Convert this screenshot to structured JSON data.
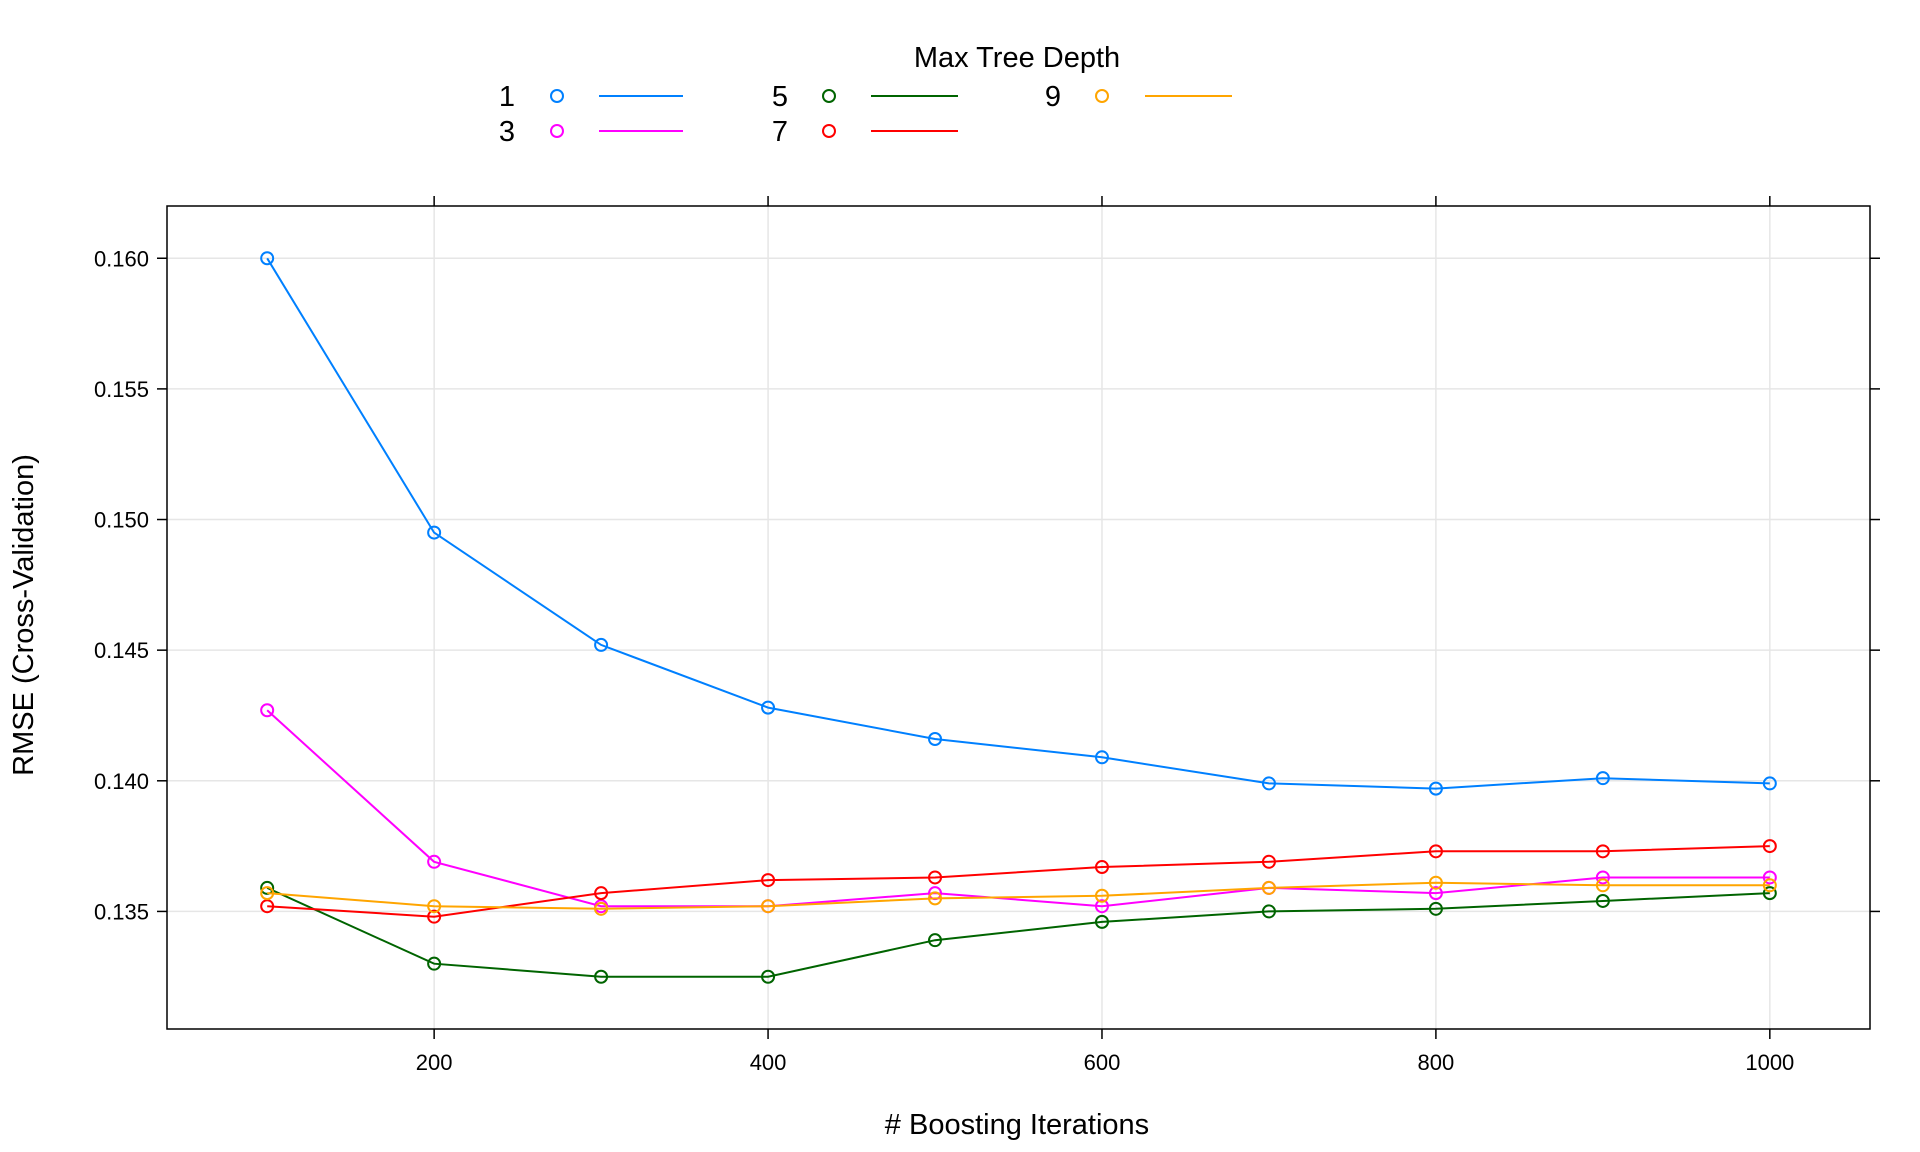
{
  "chart_data": {
    "type": "line",
    "legend_title": "Max Tree Depth",
    "legend_placement": "top",
    "xlabel": "# Boosting Iterations",
    "ylabel": "RMSE (Cross-Validation)",
    "xlim": [
      40,
      1060
    ],
    "ylim": [
      0.1305,
      0.162
    ],
    "x_ticks": [
      200,
      400,
      600,
      800,
      1000
    ],
    "x_tick_labels": [
      "200",
      "400",
      "600",
      "800",
      "1000"
    ],
    "y_ticks": [
      0.135,
      0.14,
      0.145,
      0.15,
      0.155,
      0.16
    ],
    "y_tick_labels": [
      "0.135",
      "0.140",
      "0.145",
      "0.150",
      "0.155",
      "0.160"
    ],
    "grid": true,
    "x": [
      100,
      200,
      300,
      400,
      500,
      600,
      700,
      800,
      900,
      1000
    ],
    "series": [
      {
        "name": "1",
        "color": "#0080ff",
        "values": [
          0.16,
          0.1495,
          0.1452,
          0.1428,
          0.1416,
          0.1409,
          0.1399,
          0.1397,
          0.1401,
          0.1399
        ]
      },
      {
        "name": "3",
        "color": "#ff00ff",
        "values": [
          0.1427,
          0.1369,
          0.1352,
          0.1352,
          0.1357,
          0.1352,
          0.1359,
          0.1357,
          0.1363,
          0.1363
        ]
      },
      {
        "name": "5",
        "color": "#006400",
        "values": [
          0.1359,
          0.133,
          0.1325,
          0.1325,
          0.1339,
          0.1346,
          0.135,
          0.1351,
          0.1354,
          0.1357
        ]
      },
      {
        "name": "7",
        "color": "#ff0000",
        "values": [
          0.1352,
          0.1348,
          0.1357,
          0.1362,
          0.1363,
          0.1367,
          0.1369,
          0.1373,
          0.1373,
          0.1375
        ]
      },
      {
        "name": "9",
        "color": "#ffa500",
        "values": [
          0.1357,
          0.1352,
          0.1351,
          0.1352,
          0.1355,
          0.1356,
          0.1359,
          0.1361,
          0.136,
          0.136
        ]
      }
    ]
  }
}
